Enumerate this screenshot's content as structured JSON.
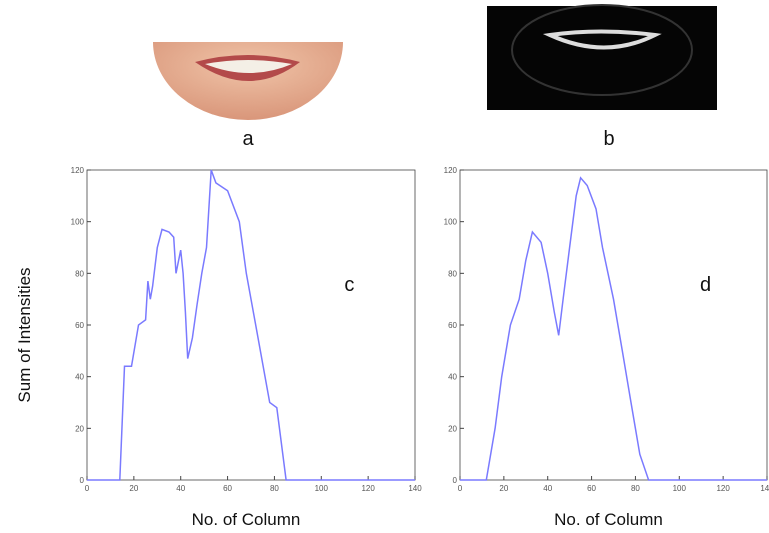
{
  "images": [
    {
      "label": "a"
    },
    {
      "label": "b"
    }
  ],
  "chart_data": [
    {
      "type": "line",
      "annotation": "c",
      "xlabel": "No. of Column",
      "ylabel": "Sum of Intensities",
      "color": "#7a7aff",
      "x": [
        0,
        14,
        16,
        19,
        22,
        25,
        26,
        27,
        28,
        30,
        32,
        35,
        37,
        38,
        40,
        41,
        42,
        43,
        45,
        47,
        49,
        51,
        53,
        55,
        60,
        65,
        68,
        72,
        75,
        78,
        81,
        85,
        140
      ],
      "values": [
        0,
        0,
        44,
        44,
        60,
        62,
        77,
        70,
        75,
        90,
        97,
        96,
        94,
        80,
        89,
        80,
        65,
        47,
        55,
        68,
        80,
        90,
        120,
        115,
        112,
        100,
        80,
        60,
        45,
        30,
        28,
        0,
        0
      ],
      "xlim": [
        0,
        140
      ],
      "ylim": [
        0,
        120
      ],
      "xticks": [
        0,
        20,
        40,
        60,
        80,
        100,
        120,
        140
      ],
      "yticks": [
        0,
        20,
        40,
        60,
        80,
        100,
        120
      ]
    },
    {
      "type": "line",
      "annotation": "d",
      "xlabel": "No. of Column",
      "color": "#7a7aff",
      "x": [
        0,
        12,
        16,
        19,
        23,
        27,
        30,
        33,
        37,
        40,
        43,
        45,
        47,
        50,
        53,
        55,
        58,
        62,
        65,
        70,
        74,
        78,
        82,
        86,
        140
      ],
      "values": [
        0,
        0,
        20,
        40,
        60,
        70,
        85,
        96,
        92,
        80,
        65,
        56,
        70,
        90,
        110,
        117,
        114,
        105,
        90,
        70,
        50,
        30,
        10,
        0,
        0
      ],
      "xlim": [
        0,
        140
      ],
      "ylim": [
        0,
        120
      ],
      "xticks": [
        0,
        20,
        40,
        60,
        80,
        100,
        120,
        140
      ],
      "yticks": [
        0,
        20,
        40,
        60,
        80,
        100,
        120
      ]
    }
  ]
}
